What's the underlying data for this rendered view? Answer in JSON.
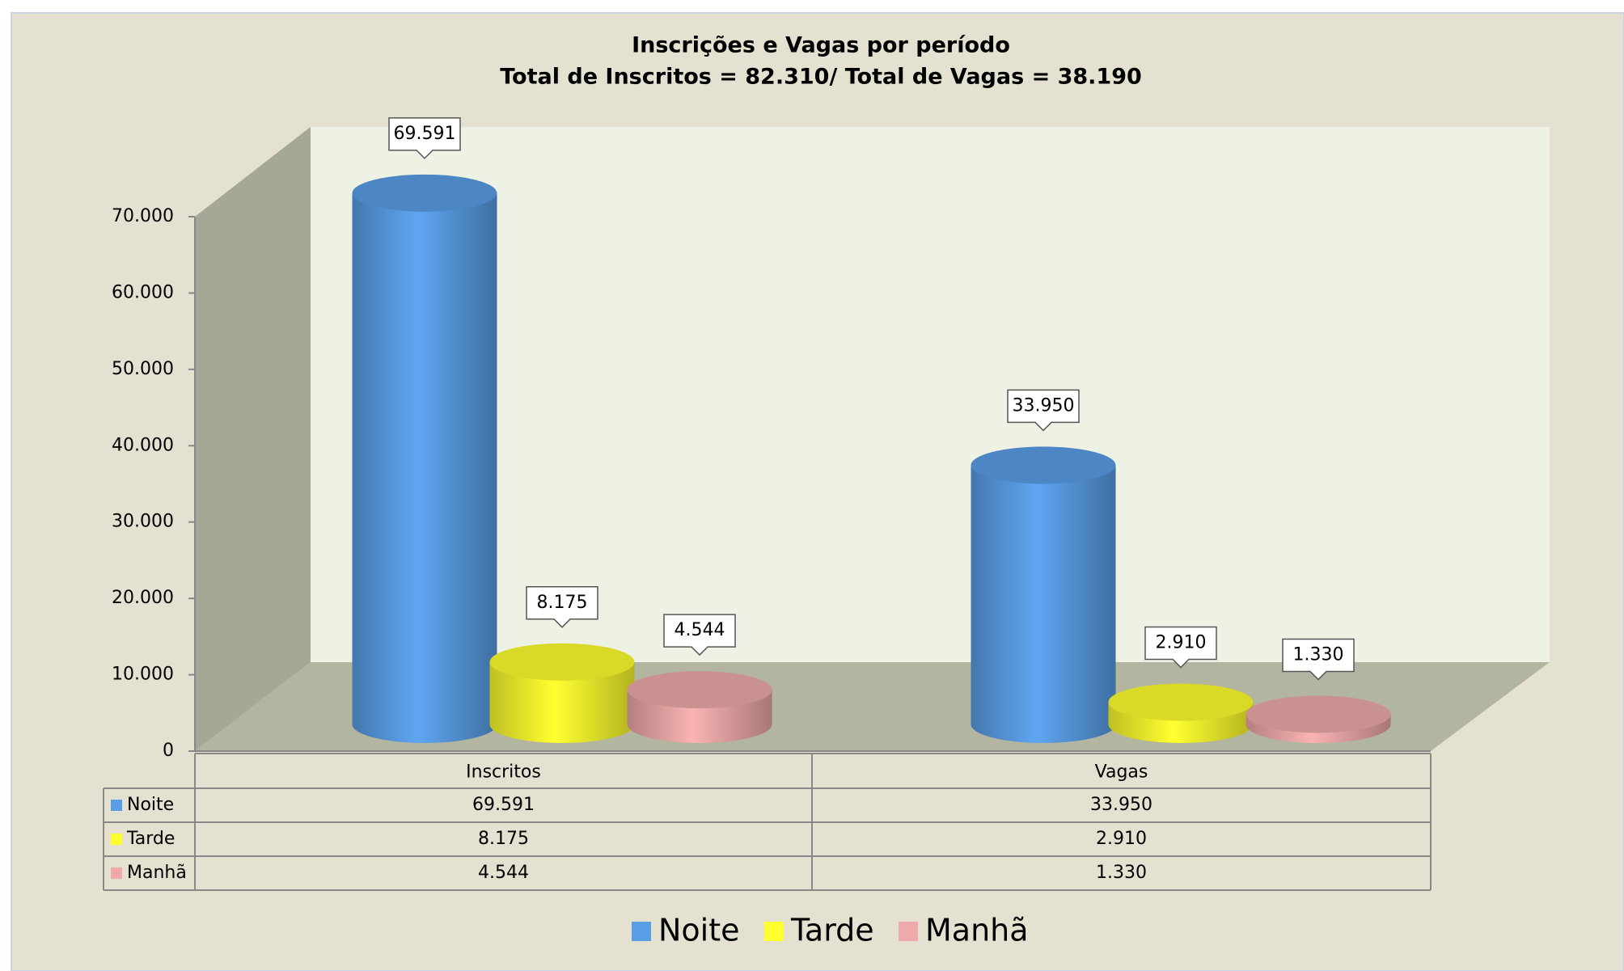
{
  "chart_data": {
    "type": "bar",
    "title": "Inscrições e Vagas por período",
    "subtitle": "Total de Inscritos = 82.310/ Total de Vagas = 38.190",
    "categories": [
      "Inscritos",
      "Vagas"
    ],
    "series": [
      {
        "name": "Noite",
        "color": "#5a9ee6",
        "values": [
          69591,
          33950
        ],
        "value_labels": [
          "69.591",
          "33.950"
        ]
      },
      {
        "name": "Tarde",
        "color": "#ffff2e",
        "values": [
          8175,
          2910
        ],
        "value_labels": [
          "8.175",
          "2.910"
        ]
      },
      {
        "name": "Manhã",
        "color": "#eeaaaa",
        "values": [
          4544,
          1330
        ],
        "value_labels": [
          "4.544",
          "1.330"
        ]
      }
    ],
    "ylim": [
      0,
      70000
    ],
    "yticks": [
      0,
      {
        "value": 10000,
        "label": "10.000"
      },
      {
        "value": 20000,
        "label": "20.000"
      },
      {
        "value": 30000,
        "label": "30.000"
      },
      {
        "value": 40000,
        "label": "40.000"
      },
      {
        "value": 50000,
        "label": "50.000"
      },
      {
        "value": 60000,
        "label": "60.000"
      },
      {
        "value": 70000,
        "label": "70.000"
      }
    ],
    "grid": false
  }
}
